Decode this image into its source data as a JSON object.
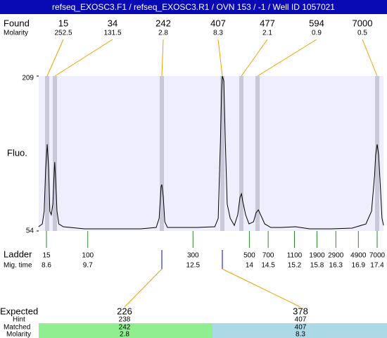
{
  "title": "refseq_EXOSC3.F1 / refseq_EXOSC3.R1 / OVN 153 / -1 / Well ID 1057021",
  "found": {
    "label": "Found",
    "molarity_label": "Molarity",
    "sizes": [
      15,
      34,
      242,
      407,
      477,
      594,
      7000
    ],
    "molarities": [
      252.5,
      131.5,
      2.8,
      8.3,
      2.1,
      0.9,
      0.5
    ]
  },
  "chart_data": {
    "type": "line",
    "y_label": "Fluo.",
    "x": [
      8.39,
      8.49,
      8.54,
      8.58,
      8.62,
      8.66,
      8.69,
      8.73,
      8.77,
      8.81,
      8.82,
      8.84,
      8.88,
      8.93,
      9.05,
      9.61,
      11.11,
      11.52,
      11.6,
      11.65,
      11.67,
      11.71,
      11.75,
      11.82,
      12.61,
      13.08,
      13.17,
      13.23,
      13.26,
      13.28,
      13.32,
      13.36,
      13.41,
      13.49,
      13.6,
      13.69,
      13.75,
      13.79,
      13.82,
      13.9,
      13.99,
      14.11,
      14.18,
      14.24,
      14.3,
      14.41,
      14.57,
      14.85,
      15.23,
      15.6,
      16.17,
      16.73,
      17.1,
      17.25,
      17.33,
      17.36,
      17.4,
      17.44,
      17.48,
      17.53,
      17.57
    ],
    "series": [
      {
        "color": "#000000",
        "values": [
          58.2,
          61.0,
          73.7,
          116.0,
          140.7,
          116.0,
          73.7,
          70.2,
          80.8,
          116.0,
          123.0,
          109.0,
          73.7,
          61.0,
          58.2,
          56.1,
          56.1,
          57.5,
          66.7,
          98.4,
          100.5,
          87.8,
          63.2,
          57.5,
          57.5,
          58.2,
          66.7,
          144.2,
          193.5,
          209.0,
          204.1,
          144.2,
          80.8,
          66.7,
          59.6,
          70.2,
          87.8,
          91.3,
          84.3,
          70.2,
          61.0,
          63.2,
          72.3,
          75.1,
          70.2,
          61.0,
          57.5,
          57.5,
          58.2,
          56.1,
          56.1,
          56.8,
          61.0,
          73.7,
          109.0,
          130.1,
          140.7,
          130.1,
          101.9,
          66.7,
          59.6
        ]
      }
    ],
    "ylim": [
      54,
      209
    ],
    "yticks": [
      54,
      209
    ]
  },
  "ladder": {
    "label": "Ladder",
    "time_label": "Mig. time",
    "sizes": [
      15,
      100,
      300,
      500,
      700,
      1100,
      1900,
      2900,
      4900,
      7000
    ],
    "times": [
      8.6,
      9.7,
      12.5,
      14,
      14.5,
      15.2,
      15.8,
      16.3,
      16.9,
      17.4
    ]
  },
  "expected": {
    "label": "Expected",
    "hint_label": "Hint",
    "matched_label": "Matched",
    "molarity_label": "Molarity",
    "columns": [
      {
        "expected": 226,
        "hint": 238,
        "matched": 242,
        "molarity": 2.8
      },
      {
        "expected": 378,
        "hint": 407,
        "matched": 407,
        "molarity": 8.3
      }
    ]
  }
}
